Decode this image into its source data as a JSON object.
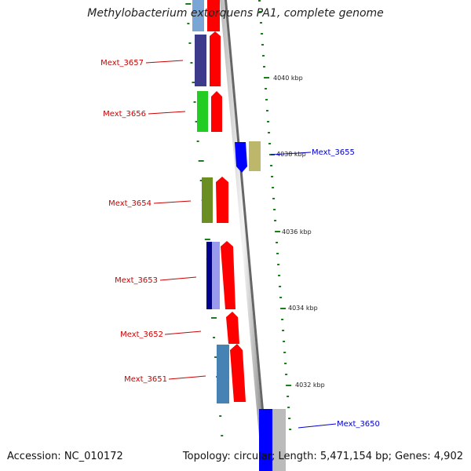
{
  "title": "Methylobacterium extorquens PA1, complete genome",
  "footer": {
    "accession": "Accession: NC_010172",
    "summary": "Topology: circular; Length: 5,471,154 bp; Genes: 4,902"
  },
  "scale_labels": [
    "4040 kbp",
    "4038 kbp",
    "4036 kbp",
    "4034 kbp",
    "4032 kbp"
  ],
  "genes_left": [
    {
      "label": "Mext_3657",
      "colors": [
        "#3d3a8c",
        "#ff0000"
      ]
    },
    {
      "label": "Mext_3656",
      "colors": [
        "#22cc22",
        "#ff0000"
      ]
    },
    {
      "label": "Mext_3654",
      "colors": [
        "#6b8e23",
        "#ff0000"
      ]
    },
    {
      "label": "Mext_3653",
      "colors": [
        "#00008b",
        "#9999ee",
        "#ff0000"
      ]
    },
    {
      "label": "Mext_3652",
      "colors": [
        "#ff0000"
      ]
    },
    {
      "label": "Mext_3651",
      "colors": [
        "#4682b4",
        "#ff0000"
      ]
    }
  ],
  "genes_right": [
    {
      "label": "Mext_3655",
      "colors": [
        "#0000ff",
        "#bdb76b"
      ]
    },
    {
      "label": "Mext_3650",
      "colors": [
        "#0000ff",
        "#bbbbbb"
      ]
    }
  ],
  "colors": {
    "left_label": "#cc0000",
    "right_label": "#0000cc",
    "backbone": "#888888",
    "tick": "#1a7f1a",
    "ink": "#222222"
  }
}
